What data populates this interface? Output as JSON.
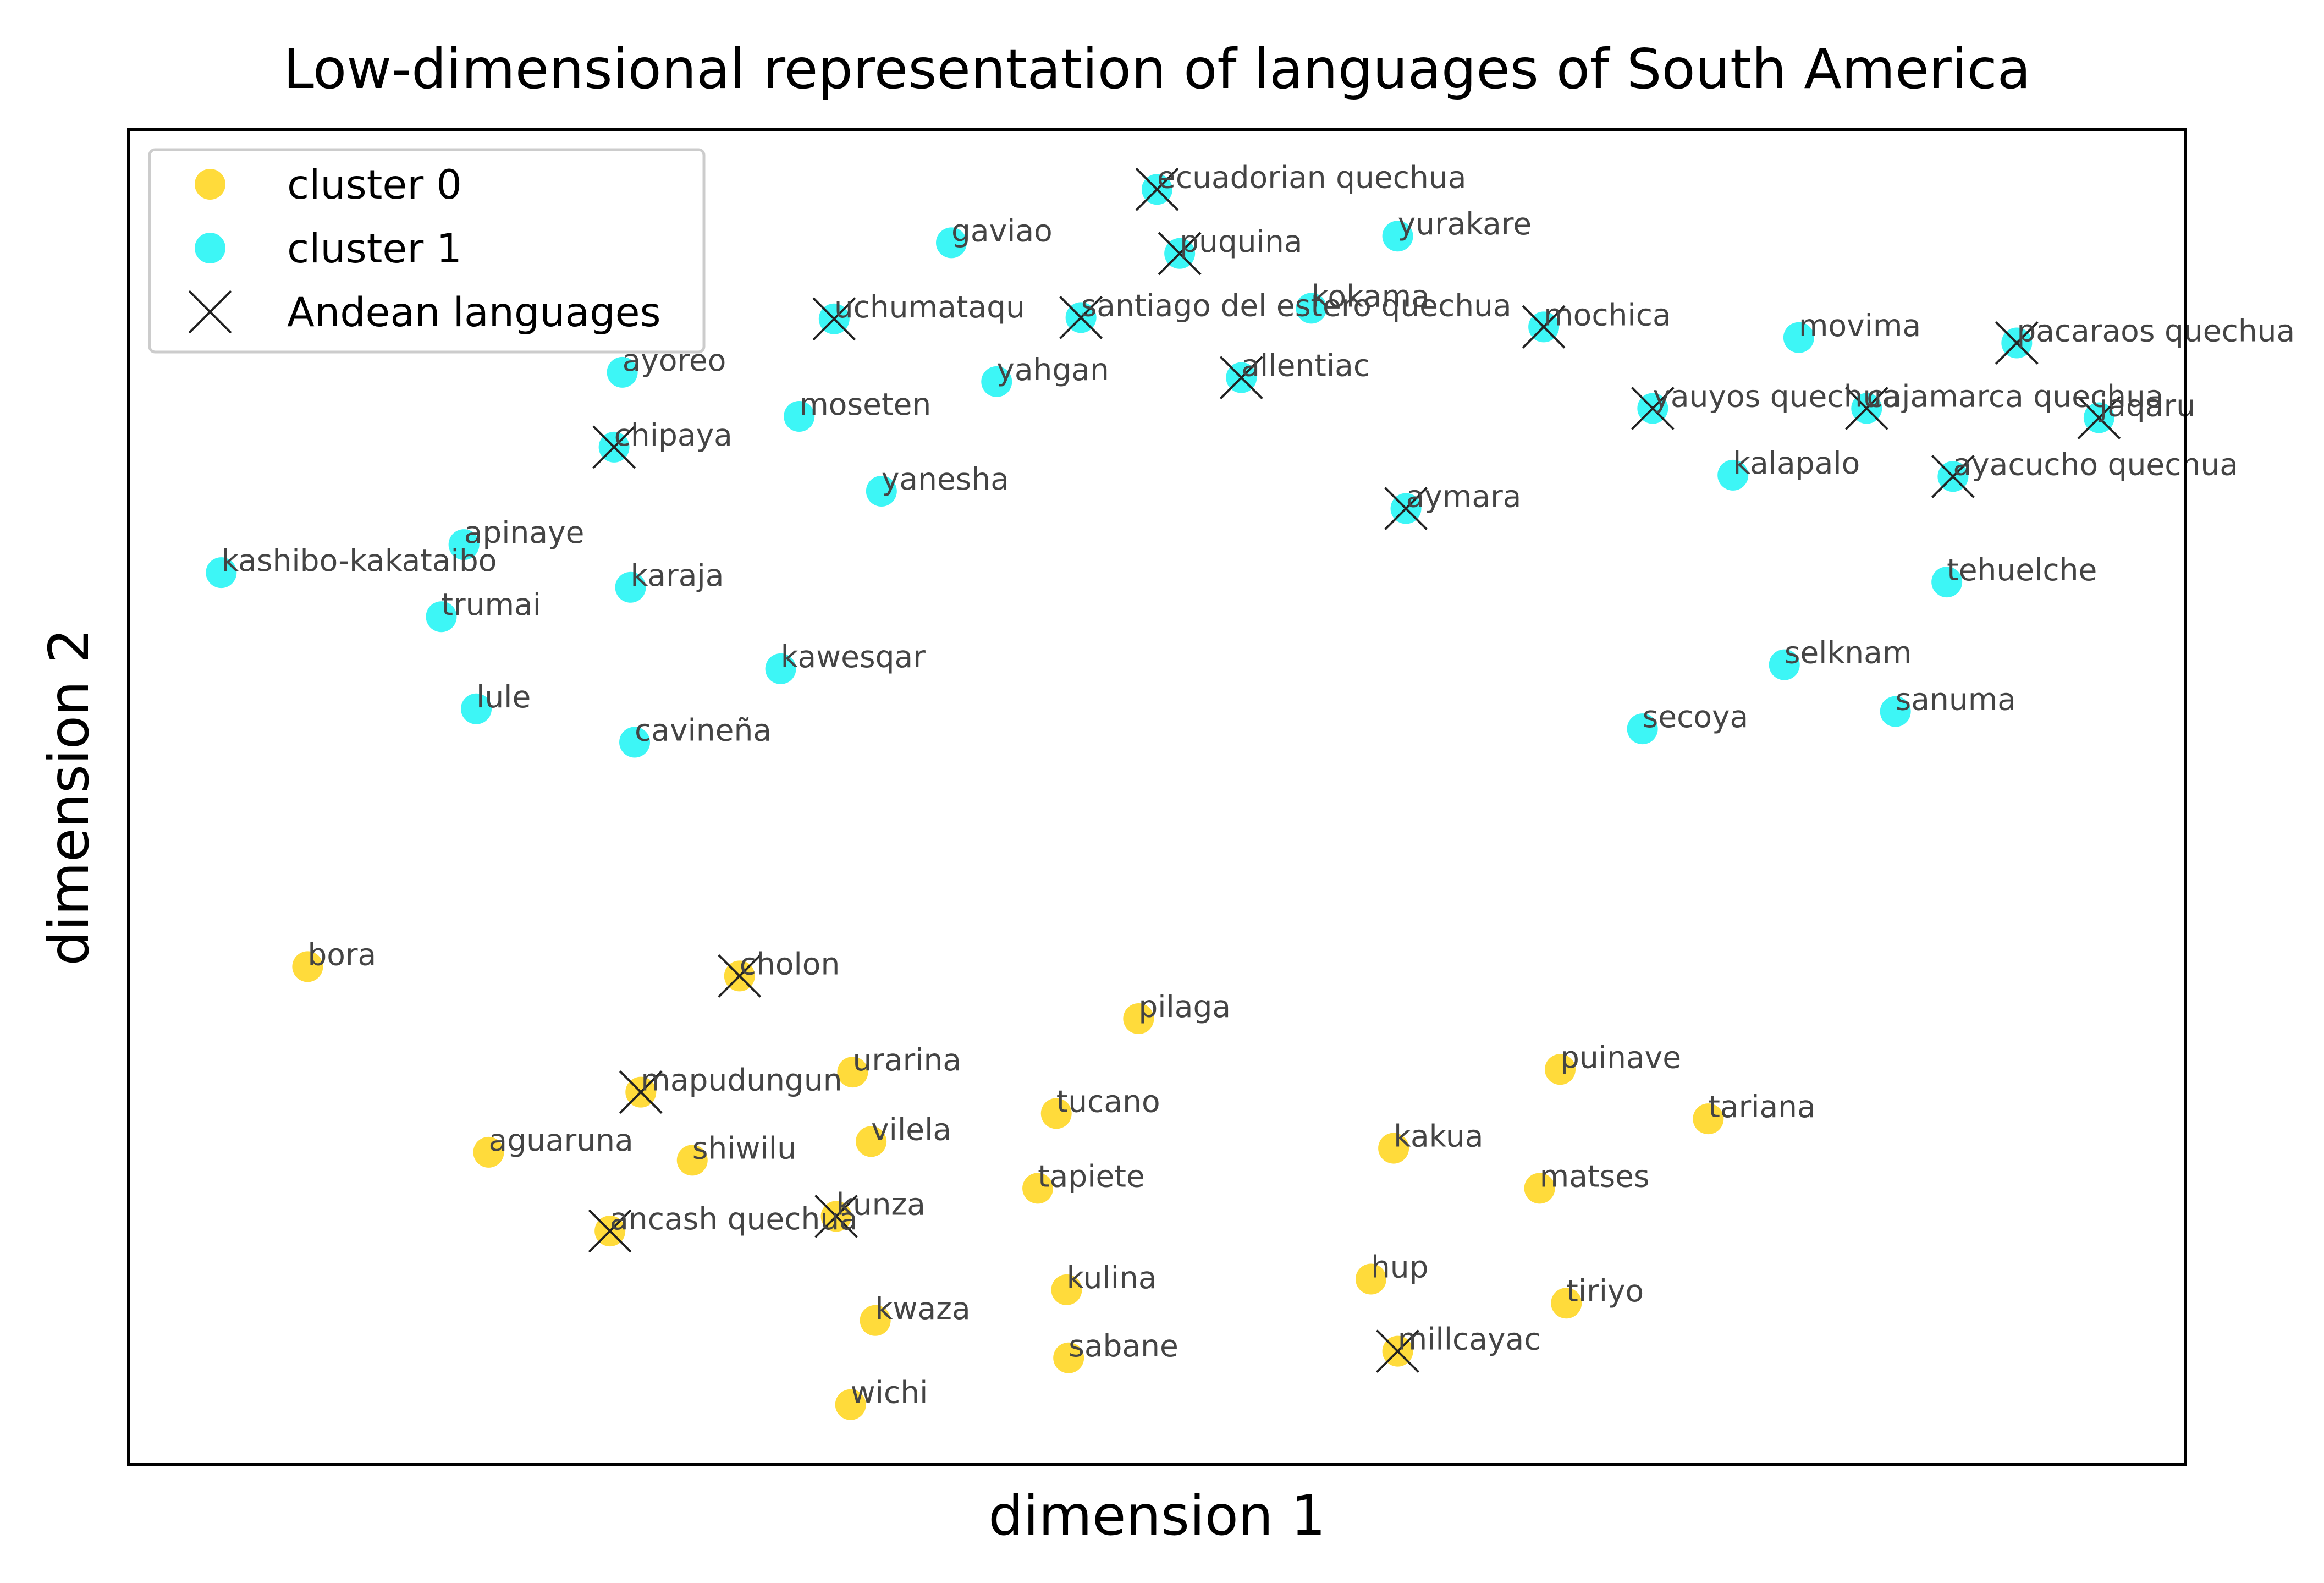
{
  "chart_data": {
    "type": "scatter",
    "title": "Low-dimensional representation of languages of South America",
    "xlabel": "dimension 1",
    "ylabel": "dimension 2",
    "xlim": [
      0,
      1000
    ],
    "ylim": [
      0,
      1000
    ],
    "ticks_shown": false,
    "grid": false,
    "legend_position": "upper-left",
    "colors": {
      "cluster 0": "#FFD519",
      "cluster 1": "#1BF5F5",
      "andean_marker": "#222222"
    },
    "legend": [
      {
        "label": "cluster 0",
        "marker": "circle",
        "color": "#FFD519"
      },
      {
        "label": "cluster 1",
        "marker": "circle",
        "color": "#1BF5F5"
      },
      {
        "label": "Andean languages",
        "marker": "x",
        "color": "#222222"
      }
    ],
    "series": [
      {
        "name": "cluster 1",
        "color": "#1BF5F5",
        "points": [
          {
            "label": "ecuadorian quechua",
            "x": 500,
            "y": 955,
            "andean": true
          },
          {
            "label": "gaviao",
            "x": 400,
            "y": 915,
            "andean": false
          },
          {
            "label": "puquina",
            "x": 511,
            "y": 907,
            "andean": true
          },
          {
            "label": "yurakare",
            "x": 617,
            "y": 920,
            "andean": false
          },
          {
            "label": "uchumataqu",
            "x": 343,
            "y": 858,
            "andean": true
          },
          {
            "label": "santiago del estero quechua",
            "x": 463,
            "y": 859,
            "andean": true
          },
          {
            "label": "kokama",
            "x": 575,
            "y": 866,
            "andean": false
          },
          {
            "label": "mochica",
            "x": 688,
            "y": 852,
            "andean": true
          },
          {
            "label": "movima",
            "x": 812,
            "y": 844,
            "andean": false
          },
          {
            "label": "pacaraos quechua",
            "x": 918,
            "y": 840,
            "andean": true
          },
          {
            "label": "ayoreo",
            "x": 240,
            "y": 818,
            "andean": false
          },
          {
            "label": "yahgan",
            "x": 422,
            "y": 811,
            "andean": false
          },
          {
            "label": "allentiac",
            "x": 541,
            "y": 814,
            "andean": true
          },
          {
            "label": "yauyos quechua",
            "x": 741,
            "y": 791,
            "andean": true
          },
          {
            "label": "cajamarca quechua",
            "x": 845,
            "y": 791,
            "andean": true
          },
          {
            "label": "jaqaru",
            "x": 958,
            "y": 784,
            "andean": true
          },
          {
            "label": "moseten",
            "x": 326,
            "y": 785,
            "andean": false
          },
          {
            "label": "chipaya",
            "x": 236,
            "y": 762,
            "andean": true
          },
          {
            "label": "kalapalo",
            "x": 780,
            "y": 741,
            "andean": false
          },
          {
            "label": "ayacucho quechua",
            "x": 887,
            "y": 740,
            "andean": true
          },
          {
            "label": "yanesha",
            "x": 366,
            "y": 729,
            "andean": false
          },
          {
            "label": "aymara",
            "x": 621,
            "y": 716,
            "andean": true
          },
          {
            "label": "apinaye",
            "x": 163,
            "y": 689,
            "andean": false
          },
          {
            "label": "kashibo-kakataibo",
            "x": 45,
            "y": 668,
            "andean": false
          },
          {
            "label": "karaja",
            "x": 244,
            "y": 657,
            "andean": false
          },
          {
            "label": "tehuelche",
            "x": 884,
            "y": 661,
            "andean": false
          },
          {
            "label": "trumai",
            "x": 152,
            "y": 635,
            "andean": false
          },
          {
            "label": "kawesqar",
            "x": 317,
            "y": 596,
            "andean": false
          },
          {
            "label": "selknam",
            "x": 805,
            "y": 599,
            "andean": false
          },
          {
            "label": "lule",
            "x": 169,
            "y": 566,
            "andean": false
          },
          {
            "label": "sanuma",
            "x": 859,
            "y": 564,
            "andean": false
          },
          {
            "label": "secoya",
            "x": 736,
            "y": 551,
            "andean": false
          },
          {
            "label": "cavineña",
            "x": 246,
            "y": 541,
            "andean": false
          }
        ]
      },
      {
        "name": "cluster 0",
        "color": "#FFD519",
        "points": [
          {
            "label": "bora",
            "x": 87,
            "y": 373,
            "andean": false
          },
          {
            "label": "cholon",
            "x": 297,
            "y": 366,
            "andean": true
          },
          {
            "label": "pilaga",
            "x": 491,
            "y": 334,
            "andean": false
          },
          {
            "label": "mapudungun",
            "x": 249,
            "y": 279,
            "andean": true
          },
          {
            "label": "urarina",
            "x": 352,
            "y": 294,
            "andean": false
          },
          {
            "label": "puinave",
            "x": 696,
            "y": 296,
            "andean": false
          },
          {
            "label": "tucano",
            "x": 451,
            "y": 263,
            "andean": false
          },
          {
            "label": "tariana",
            "x": 768,
            "y": 259,
            "andean": false
          },
          {
            "label": "aguaruna",
            "x": 175,
            "y": 234,
            "andean": false
          },
          {
            "label": "shiwilu",
            "x": 274,
            "y": 228,
            "andean": false
          },
          {
            "label": "vilela",
            "x": 361,
            "y": 242,
            "andean": false
          },
          {
            "label": "kakua",
            "x": 615,
            "y": 237,
            "andean": false
          },
          {
            "label": "tapiete",
            "x": 442,
            "y": 207,
            "andean": false
          },
          {
            "label": "matses",
            "x": 686,
            "y": 207,
            "andean": false
          },
          {
            "label": "kunza",
            "x": 344,
            "y": 186,
            "andean": true
          },
          {
            "label": "ancash quechua",
            "x": 234,
            "y": 175,
            "andean": true
          },
          {
            "label": "hup",
            "x": 604,
            "y": 139,
            "andean": false
          },
          {
            "label": "kulina",
            "x": 456,
            "y": 131,
            "andean": false
          },
          {
            "label": "tiriyo",
            "x": 699,
            "y": 121,
            "andean": false
          },
          {
            "label": "kwaza",
            "x": 363,
            "y": 108,
            "andean": false
          },
          {
            "label": "millcayac",
            "x": 617,
            "y": 85,
            "andean": true
          },
          {
            "label": "sabane",
            "x": 457,
            "y": 80,
            "andean": false
          },
          {
            "label": "wichi",
            "x": 351,
            "y": 45,
            "andean": false
          }
        ]
      }
    ]
  }
}
